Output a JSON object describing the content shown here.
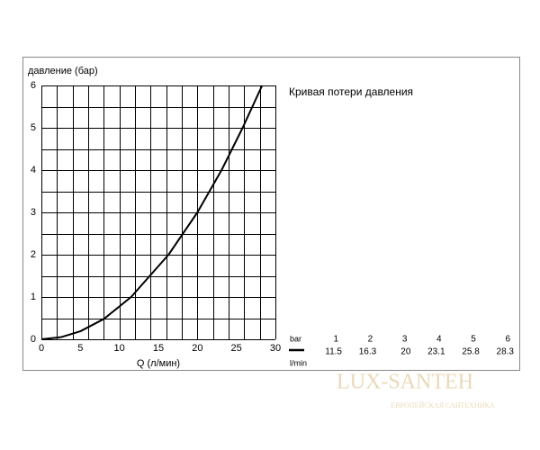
{
  "chart_data": {
    "type": "line",
    "title": "Кривая потери давления",
    "ylabel": "давление (бар)",
    "xlabel": "Q (л/мин)",
    "x": [
      0,
      2.5,
      5,
      8,
      11.5,
      16.3,
      20,
      23.1,
      25.8,
      28.3
    ],
    "values": [
      0,
      0.05,
      0.19,
      0.48,
      1,
      2,
      3,
      4,
      5,
      6
    ],
    "color": "#000000",
    "xlim": [
      0,
      30
    ],
    "ylim": [
      0,
      6
    ],
    "xticks": [
      0,
      5,
      10,
      15,
      20,
      25,
      30
    ],
    "yticks": [
      0,
      1,
      2,
      3,
      4,
      5,
      6
    ],
    "xgrid": [
      0,
      2,
      4,
      6,
      8,
      10,
      12,
      14,
      16,
      18,
      20,
      22,
      24,
      26,
      28,
      30
    ],
    "ygrid": [
      0,
      0.5,
      1,
      1.5,
      2,
      2.5,
      3,
      3.5,
      4,
      4.5,
      5,
      5.5,
      6
    ]
  },
  "table": {
    "row1_label": "bar",
    "row2_label": "l/min",
    "bar": [
      1,
      2,
      3,
      4,
      5,
      6
    ],
    "lmin": [
      11.5,
      16.3,
      20.0,
      23.1,
      25.8,
      28.3
    ]
  },
  "watermark": {
    "title": "LUX-SANTEH",
    "subtitle": "ЕВРОПЕЙСКАЯ САНТЕХНИКА"
  }
}
